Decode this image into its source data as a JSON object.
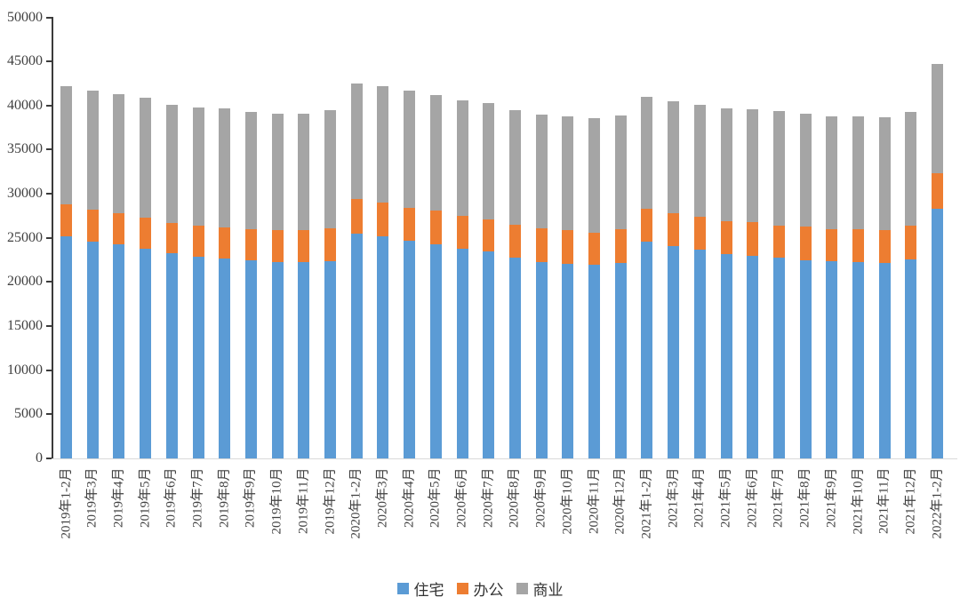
{
  "chart_data": {
    "type": "bar",
    "stacked": true,
    "title": "",
    "xlabel": "",
    "ylabel": "",
    "grid": false,
    "categories": [
      "2019年1-2月",
      "2019年3月",
      "2019年4月",
      "2019年5月",
      "2019年6月",
      "2019年7月",
      "2019年8月",
      "2019年9月",
      "2019年10月",
      "2019年11月",
      "2019年12月",
      "2020年1-2月",
      "2020年3月",
      "2020年4月",
      "2020年5月",
      "2020年6月",
      "2020年7月",
      "2020年8月",
      "2020年9月",
      "2020年10月",
      "2020年11月",
      "2020年12月",
      "2021年1-2月",
      "2021年3月",
      "2021年4月",
      "2021年5月",
      "2021年6月",
      "2021年7月",
      "2021年8月",
      "2021年9月",
      "2021年10月",
      "2021年11月",
      "2021年12月",
      "2022年1-2月"
    ],
    "series": [
      {
        "name": "住宅",
        "key": "residential",
        "color": "#5B9BD5",
        "values": [
          25200,
          24600,
          24300,
          23800,
          23300,
          22900,
          22700,
          22500,
          22300,
          22300,
          22400,
          25500,
          25200,
          24700,
          24300,
          23800,
          23500,
          22800,
          22300,
          22100,
          22000,
          22200,
          24600,
          24100,
          23700,
          23200,
          23000,
          22800,
          22500,
          22400,
          22300,
          22200,
          22600,
          28300
        ]
      },
      {
        "name": "办公",
        "key": "office",
        "color": "#ED7D31",
        "values": [
          3600,
          3600,
          3500,
          3500,
          3400,
          3500,
          3500,
          3500,
          3600,
          3600,
          3700,
          3900,
          3800,
          3700,
          3800,
          3700,
          3600,
          3700,
          3800,
          3800,
          3600,
          3800,
          3700,
          3700,
          3700,
          3700,
          3800,
          3600,
          3800,
          3600,
          3700,
          3700,
          3800,
          4000
        ]
      },
      {
        "name": "商业",
        "key": "commercial",
        "color": "#A5A5A5",
        "values": [
          13400,
          13500,
          13500,
          13600,
          13400,
          13400,
          13500,
          13300,
          13200,
          13200,
          13400,
          13100,
          13200,
          13300,
          13100,
          13100,
          13200,
          13000,
          12900,
          12900,
          13000,
          12900,
          12700,
          12700,
          12700,
          12800,
          12800,
          13000,
          12800,
          12800,
          12800,
          12800,
          12900,
          12400
        ]
      }
    ],
    "y_axis": {
      "min": 0,
      "max": 50000,
      "step": 5000,
      "tick_labels": [
        "0",
        "5000",
        "10000",
        "15000",
        "20000",
        "25000",
        "30000",
        "35000",
        "40000",
        "45000",
        "50000"
      ]
    },
    "legend": {
      "position": "bottom",
      "items": [
        "住宅",
        "办公",
        "商业"
      ]
    }
  }
}
